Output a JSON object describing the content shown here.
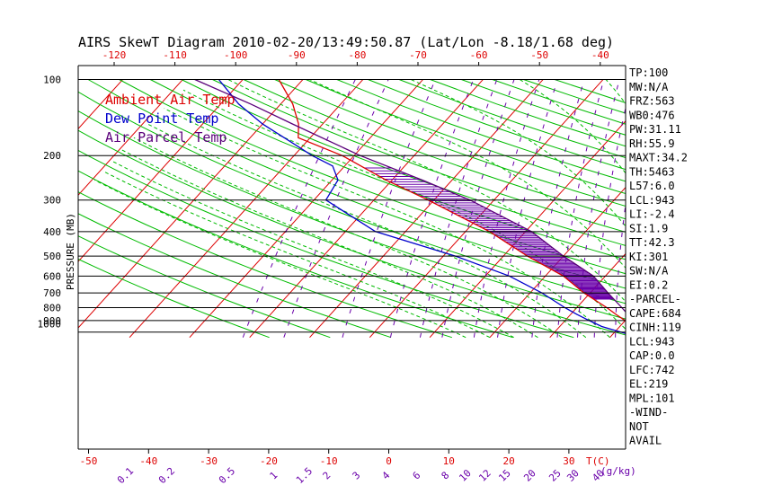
{
  "title": "AIRS SkewT Diagram 2010-02-20/13:49:50.87 (Lat/Lon -8.18/1.68 deg)",
  "colors": {
    "ambient": "#dd0000",
    "dewpoint": "#0000cc",
    "parcel": "#5a007a",
    "isotherm": "#dd0000",
    "dry_adiabat": "#00bb00",
    "moist_adiabat": "#00bb00",
    "mixing_ratio": "#6a00aa",
    "top_axis": "#dd0000",
    "bottom_axis": "#dd0000"
  },
  "chart_data": {
    "type": "skew-t",
    "ylabel": "PRESSURE (MB)",
    "pressure_ticks": [
      "100",
      "200",
      "300",
      "400",
      "500",
      "600",
      "700",
      "800",
      "900",
      "1000"
    ],
    "pressure_levels": [
      100,
      200,
      300,
      400,
      500,
      600,
      700,
      800,
      900,
      1000
    ],
    "y_scale": "log",
    "ylim": [
      1050,
      100
    ],
    "xlim_bottom": [
      -55,
      45
    ],
    "bottom_ticks": [
      "-50",
      "-40",
      "-30",
      "-20",
      "-10",
      "0",
      "10",
      "20",
      "30"
    ],
    "bottom_unit": "T(C)",
    "top_ticks": [
      "-120",
      "-110",
      "-100",
      "-90",
      "-80",
      "-70",
      "-60",
      "-50",
      "-40"
    ],
    "mixing_ratio_labels": [
      "0.1",
      "0.2",
      "0.5",
      "1",
      "1.5",
      "2",
      "3",
      "4",
      "6",
      "8",
      "10",
      "12",
      "15",
      "20",
      "25",
      "30",
      "40"
    ],
    "mixing_ratio_unit": "(g/kg)",
    "legend": [
      "Ambient Air Temp",
      "Dew Point Temp",
      "Air Parcel Temp"
    ],
    "series": [
      {
        "name": "Ambient Air Temp",
        "pressure": [
          1013,
          950,
          900,
          850,
          800,
          700,
          600,
          500,
          400,
          300,
          250,
          200,
          170,
          150,
          125,
          100
        ],
        "temperature": [
          27,
          22.5,
          20,
          17.5,
          15,
          9,
          3,
          -6,
          -16,
          -31,
          -41,
          -52,
          -62,
          -64,
          -68,
          -74
        ]
      },
      {
        "name": "Dew Point Temp",
        "pressure": [
          1013,
          950,
          900,
          850,
          800,
          700,
          600,
          500,
          400,
          300,
          250,
          220,
          200,
          175,
          150,
          125,
          100
        ],
        "temperature": [
          22,
          17,
          14,
          11,
          8,
          2,
          -6,
          -18,
          -35,
          -48,
          -49,
          -52,
          -57,
          -63,
          -70,
          -77,
          -84
        ]
      },
      {
        "name": "Air Parcel Temp",
        "pressure": [
          1013,
          943,
          900,
          850,
          800,
          700,
          600,
          500,
          400,
          300,
          250,
          200,
          150,
          125,
          100
        ],
        "temperature": [
          27,
          21.5,
          21,
          19.5,
          17.5,
          13,
          8,
          0,
          -9,
          -24,
          -35,
          -49,
          -65,
          -75,
          -88
        ]
      }
    ]
  },
  "indices": [
    "TP:100",
    "MW:N/A",
    "FRZ:563",
    "WB0:476",
    "PW:31.11",
    "RH:55.9",
    "MAXT:34.2",
    "TH:5463",
    "L57:6.0",
    "LCL:943",
    "LI:-2.4",
    "SI:1.9",
    "TT:42.3",
    "KI:301",
    "SW:N/A",
    "EI:0.2",
    "-PARCEL-",
    "CAPE:684",
    "CINH:119",
    "LCL:943",
    "CAP:0.0",
    "LFC:742",
    "EL:219",
    "MPL:101",
    "-WIND-",
    "NOT",
    "AVAIL"
  ]
}
